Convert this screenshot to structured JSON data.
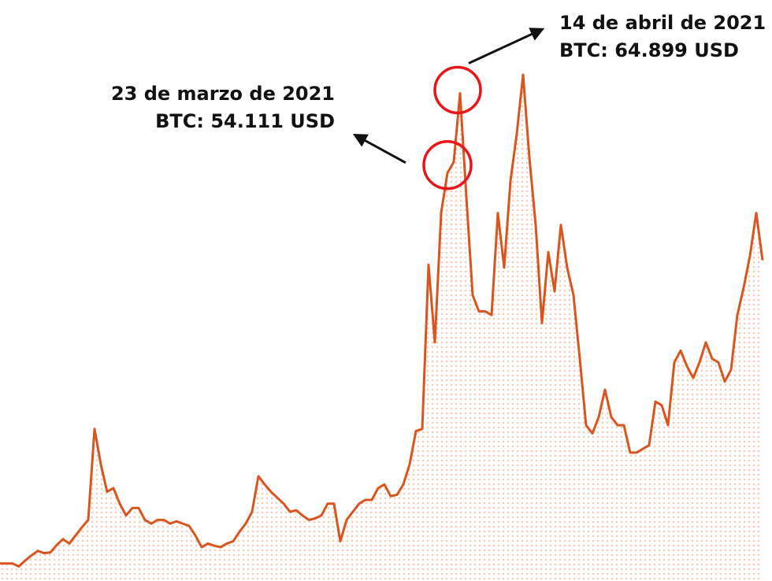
{
  "chart_data": {
    "type": "line",
    "color": "#d9541e",
    "ylim": [
      0,
      77500
    ],
    "values": [
      1300,
      1300,
      1300,
      900,
      1700,
      2400,
      3000,
      2700,
      2800,
      3800,
      4600,
      4000,
      5100,
      6200,
      7200,
      19500,
      14700,
      11000,
      11500,
      9400,
      7800,
      8800,
      8800,
      7200,
      6700,
      7200,
      7200,
      6700,
      7000,
      6700,
      6400,
      5100,
      3500,
      4000,
      3700,
      3500,
      4000,
      4300,
      5600,
      6700,
      8300,
      13100,
      12000,
      11000,
      10200,
      9400,
      8300,
      8500,
      7800,
      7200,
      7400,
      7800,
      9400,
      9400,
      4300,
      7200,
      8300,
      9400,
      9900,
      9900,
      11500,
      12000,
      10400,
      10600,
      12000,
      14700,
      19200,
      19500,
      41700,
      31200,
      48700,
      54111,
      55600,
      64899,
      50900,
      37600,
      35400,
      35400,
      34900,
      48700,
      41300,
      53000,
      59400,
      67400,
      56200,
      47100,
      33800,
      43400,
      38100,
      47100,
      41300,
      37600,
      29000,
      20000,
      18900,
      21100,
      24800,
      21100,
      20000,
      20000,
      16300,
      16300,
      16800,
      17300,
      23200,
      22700,
      20000,
      28500,
      30100,
      28000,
      26400,
      28500,
      31200,
      29000,
      28500,
      25900,
      27500,
      34900,
      38600,
      42900,
      48700,
      42300
    ],
    "annotations": [
      {
        "date": "23 de marzo de 2021",
        "value_label": "BTC: 54.111 USD",
        "value": 54111
      },
      {
        "date": "14 de abril de 2021",
        "value_label": "BTC: 64.899 USD",
        "value": 64899
      }
    ]
  }
}
